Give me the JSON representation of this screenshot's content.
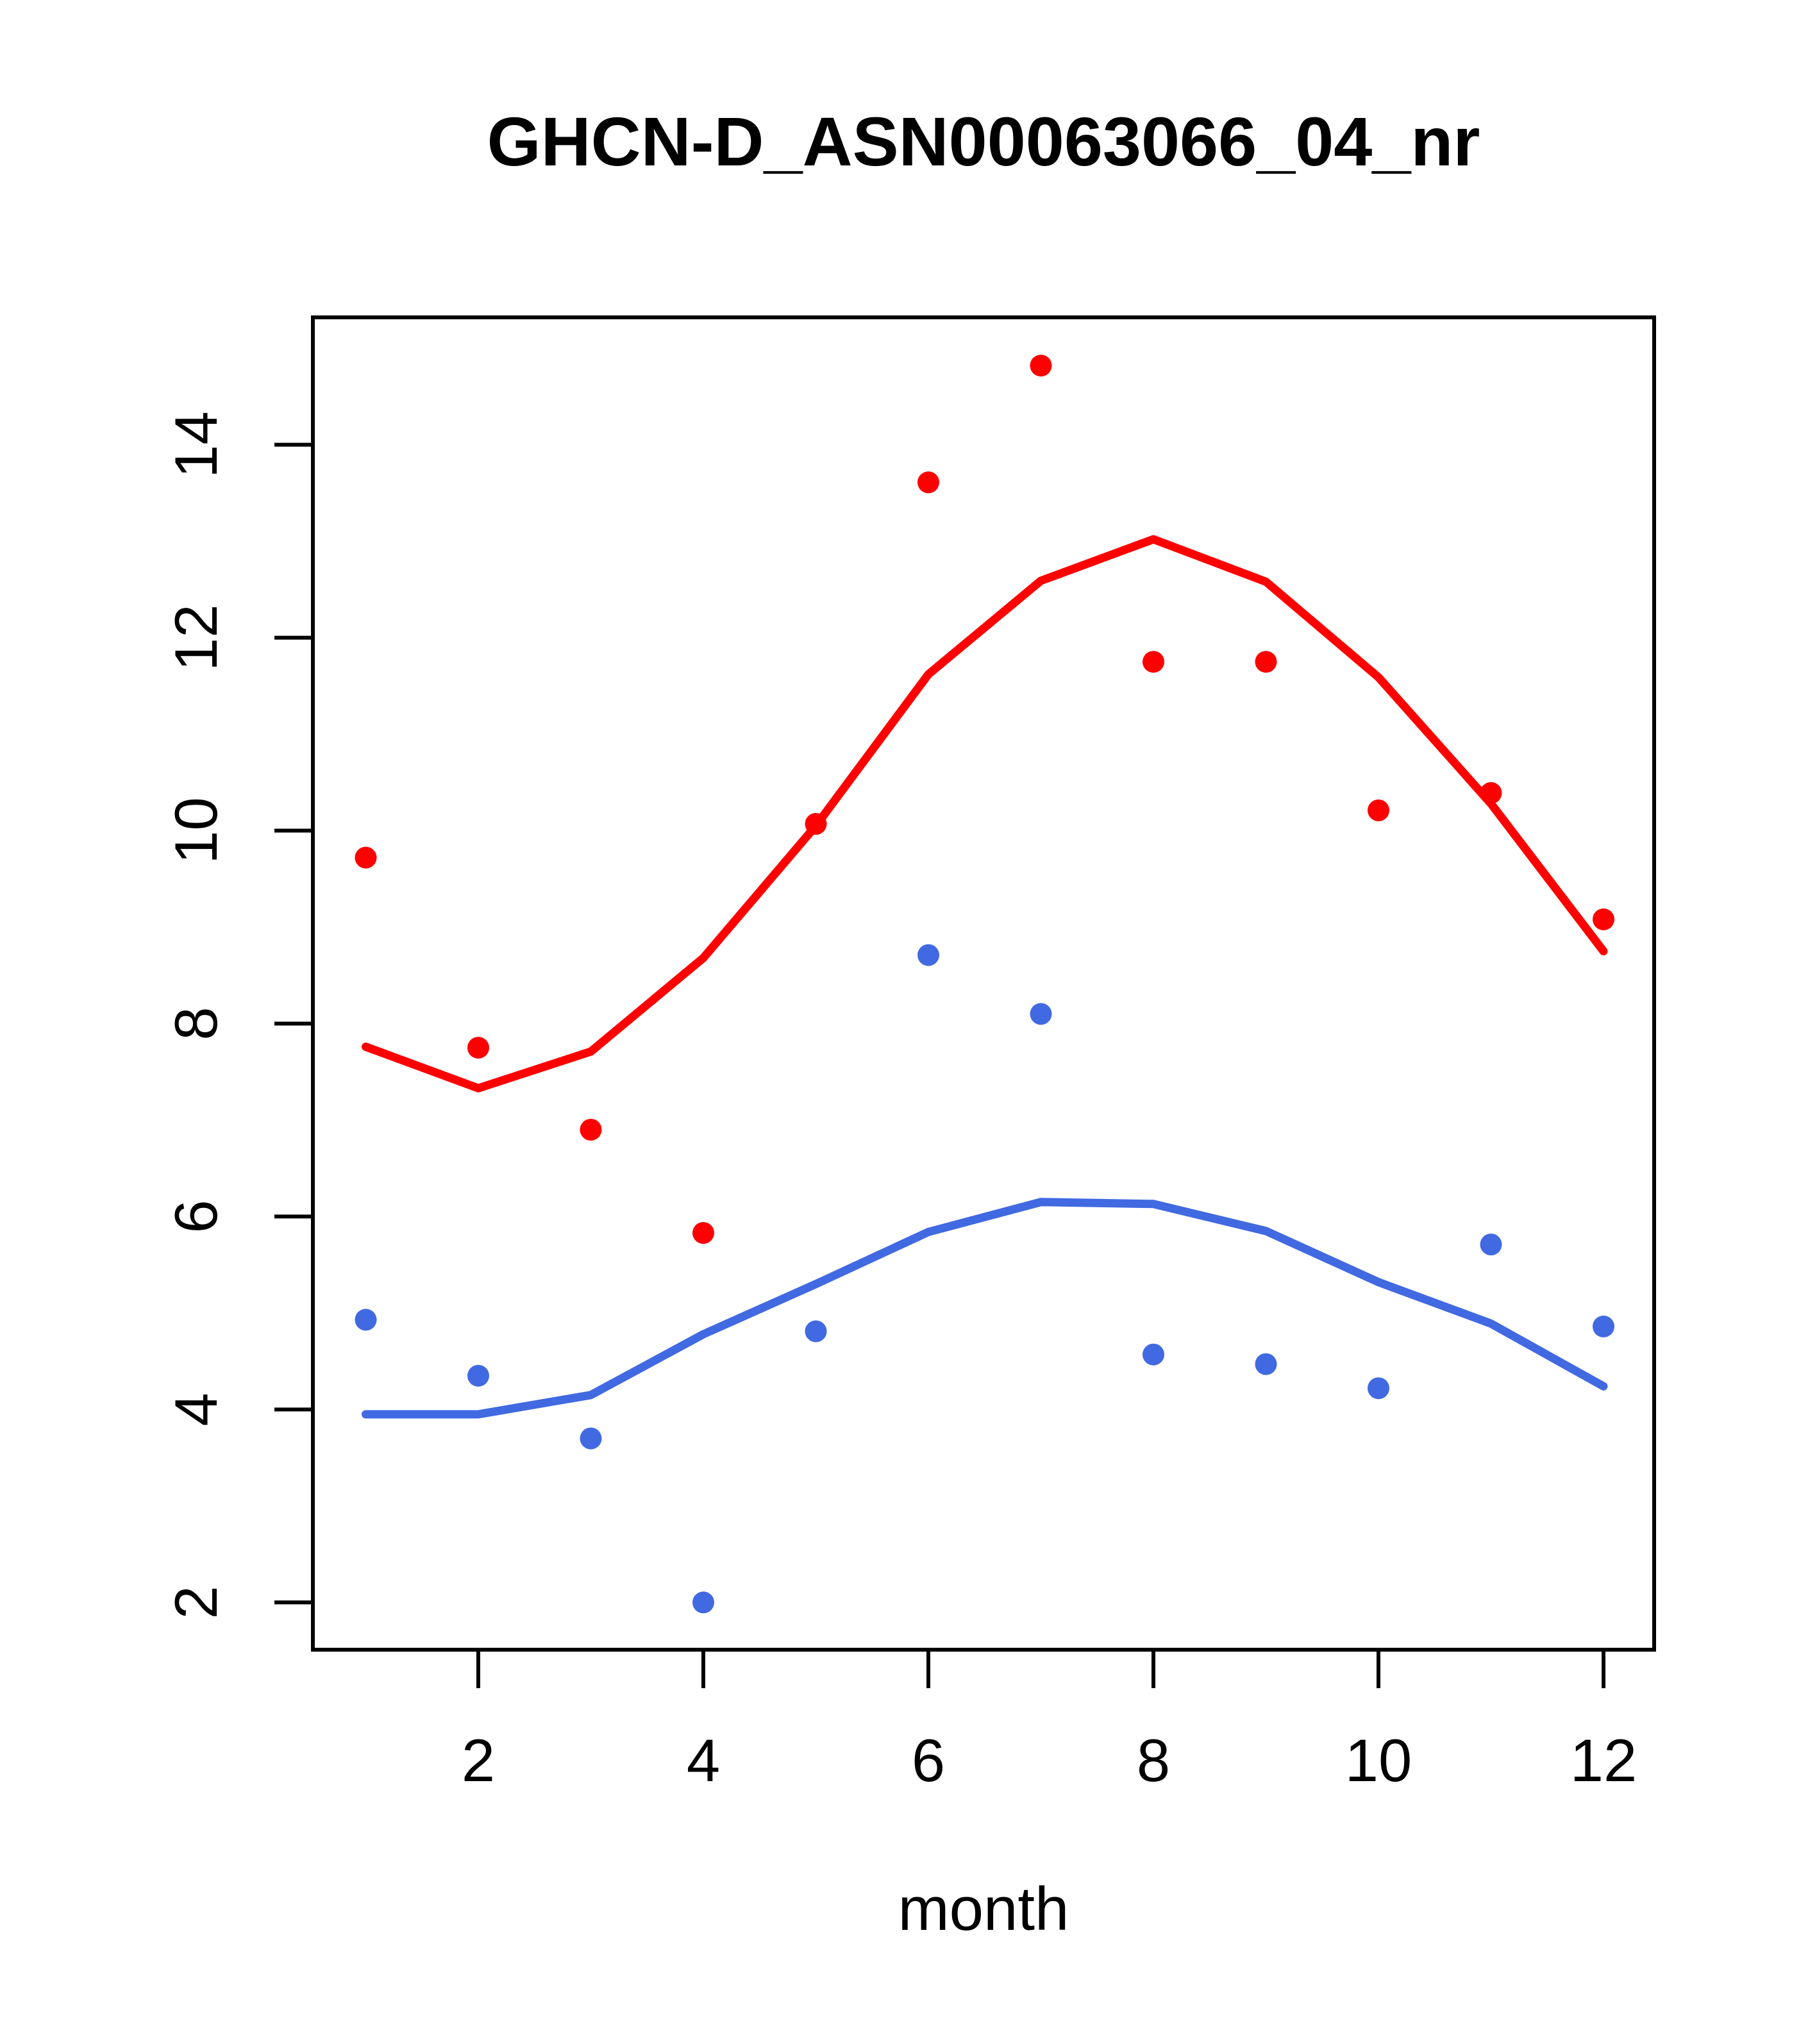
{
  "page": {
    "background_color": "#FFFFFF",
    "axis_color": "#000000"
  },
  "chart_data": {
    "type": "scatter",
    "title": "GHCN-D_ASN00063066_04_nr",
    "xlabel": "month",
    "ylabel": "",
    "grid": false,
    "legend_position": "none",
    "x": [
      1,
      2,
      3,
      4,
      5,
      6,
      7,
      8,
      9,
      10,
      11,
      12
    ],
    "x_ticks": [
      2,
      4,
      6,
      8,
      10,
      12
    ],
    "y_ticks": [
      2,
      4,
      6,
      8,
      10,
      12,
      14
    ],
    "xlim": [
      0.53,
      12.45
    ],
    "ylim": [
      1.51,
      15.32
    ],
    "series": [
      {
        "name": "red-points",
        "kind": "scatter",
        "color": "#FF0000",
        "values": [
          9.72,
          7.75,
          6.9,
          5.83,
          10.07,
          13.61,
          14.82,
          11.75,
          11.75,
          10.21,
          10.39,
          9.08
        ]
      },
      {
        "name": "blue-points",
        "kind": "scatter",
        "color": "#4169E1",
        "values": [
          4.93,
          4.35,
          3.7,
          2.0,
          4.81,
          8.71,
          8.1,
          4.57,
          4.47,
          4.22,
          5.71,
          4.86
        ]
      },
      {
        "name": "red-fit-line",
        "kind": "line",
        "color": "#FF0000",
        "values": [
          7.76,
          7.33,
          7.71,
          8.68,
          10.05,
          11.62,
          12.59,
          13.02,
          12.58,
          11.59,
          10.28,
          8.75
        ]
      },
      {
        "name": "blue-fit-line",
        "kind": "line",
        "color": "#4169E1",
        "values": [
          3.95,
          3.95,
          4.15,
          4.78,
          5.3,
          5.84,
          6.15,
          6.13,
          5.85,
          5.32,
          4.89,
          4.24
        ]
      }
    ]
  }
}
